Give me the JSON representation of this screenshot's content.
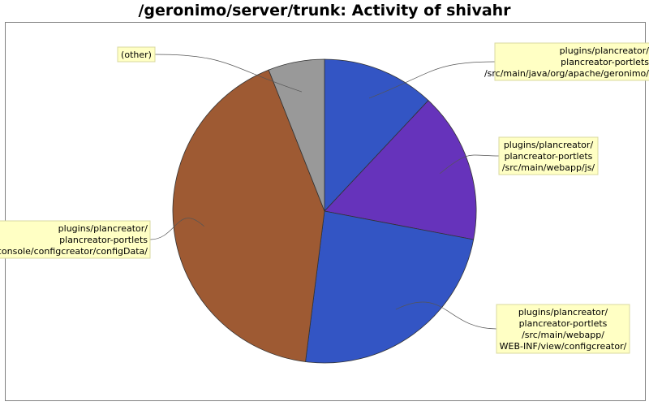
{
  "chart_data": {
    "type": "pie",
    "title": "/geronimo/server/trunk: Activity of shivahr",
    "slices": [
      {
        "label": "plugins/plancreator/\nplancreator-portlets\n/src/main/java/org/apache/geronimo/",
        "value": 12,
        "color": "#3355c4"
      },
      {
        "label": "plugins/plancreator/\nplancreator-portlets\n/src/main/webapp/js/",
        "value": 16,
        "color": "#6633bb"
      },
      {
        "label": "plugins/plancreator/\nplancreator-portlets\n/src/main/webapp/\nWEB-INF/view/configcreator/",
        "value": 24,
        "color": "#3355c4"
      },
      {
        "label": "plugins/plancreator/\nplancreator-portlets\n/src/main/java/org/apache/geronimo/console/configcreator/configData/",
        "value": 42,
        "color": "#9e5a33"
      },
      {
        "label": "(other)",
        "value": 6,
        "color": "#999999"
      }
    ],
    "start_angle": "12 o'clock, clockwise"
  }
}
